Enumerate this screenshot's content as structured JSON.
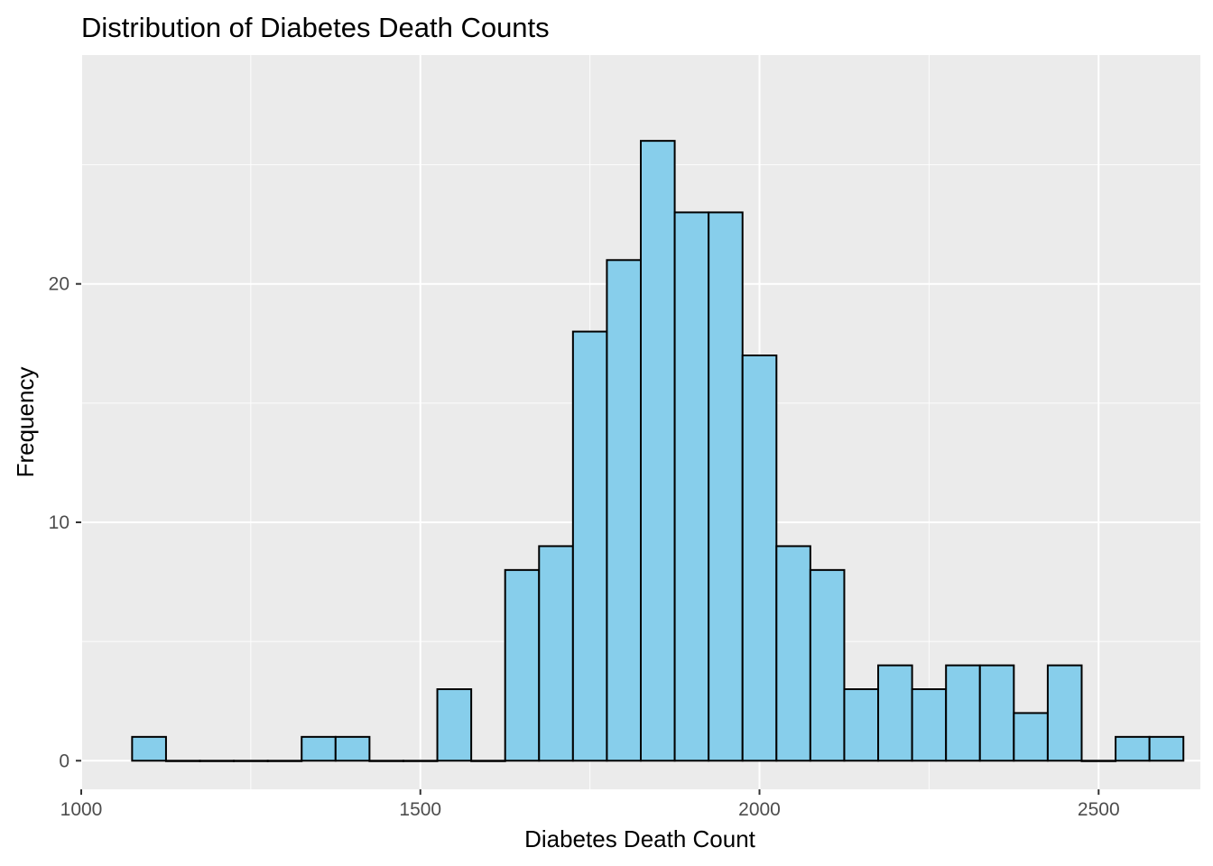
{
  "chart_data": {
    "type": "bar",
    "subtype": "histogram",
    "title": "Distribution of Diabetes Death Counts",
    "xlabel": "Diabetes Death Count",
    "ylabel": "Frequency",
    "xlim": [
      1000,
      2650
    ],
    "ylim": [
      0,
      27
    ],
    "x_ticks": [
      1000,
      1500,
      2000,
      2500
    ],
    "y_ticks": [
      0,
      10,
      20
    ],
    "bin_width": 50,
    "bins": [
      {
        "start": 1075,
        "end": 1125,
        "count": 1
      },
      {
        "start": 1125,
        "end": 1175,
        "count": 0
      },
      {
        "start": 1175,
        "end": 1225,
        "count": 0
      },
      {
        "start": 1225,
        "end": 1275,
        "count": 0
      },
      {
        "start": 1275,
        "end": 1325,
        "count": 0
      },
      {
        "start": 1325,
        "end": 1375,
        "count": 1
      },
      {
        "start": 1375,
        "end": 1425,
        "count": 1
      },
      {
        "start": 1425,
        "end": 1475,
        "count": 0
      },
      {
        "start": 1475,
        "end": 1525,
        "count": 0
      },
      {
        "start": 1525,
        "end": 1575,
        "count": 3
      },
      {
        "start": 1575,
        "end": 1625,
        "count": 0
      },
      {
        "start": 1625,
        "end": 1675,
        "count": 8
      },
      {
        "start": 1675,
        "end": 1725,
        "count": 9
      },
      {
        "start": 1725,
        "end": 1775,
        "count": 18
      },
      {
        "start": 1775,
        "end": 1825,
        "count": 21
      },
      {
        "start": 1825,
        "end": 1875,
        "count": 26
      },
      {
        "start": 1875,
        "end": 1925,
        "count": 23
      },
      {
        "start": 1925,
        "end": 1975,
        "count": 23
      },
      {
        "start": 1975,
        "end": 2025,
        "count": 17
      },
      {
        "start": 2025,
        "end": 2075,
        "count": 9
      },
      {
        "start": 2075,
        "end": 2125,
        "count": 8
      },
      {
        "start": 2125,
        "end": 2175,
        "count": 3
      },
      {
        "start": 2175,
        "end": 2225,
        "count": 4
      },
      {
        "start": 2225,
        "end": 2275,
        "count": 3
      },
      {
        "start": 2275,
        "end": 2325,
        "count": 4
      },
      {
        "start": 2325,
        "end": 2375,
        "count": 4
      },
      {
        "start": 2375,
        "end": 2425,
        "count": 2
      },
      {
        "start": 2425,
        "end": 2475,
        "count": 4
      },
      {
        "start": 2475,
        "end": 2525,
        "count": 0
      },
      {
        "start": 2525,
        "end": 2575,
        "count": 1
      },
      {
        "start": 2575,
        "end": 2625,
        "count": 1
      }
    ],
    "grid": true,
    "legend": "none",
    "colors": {
      "bar_fill": "#87CEEB",
      "bar_outline": "#000000",
      "panel_background": "#EBEBEB",
      "grid": "#FFFFFF"
    }
  }
}
